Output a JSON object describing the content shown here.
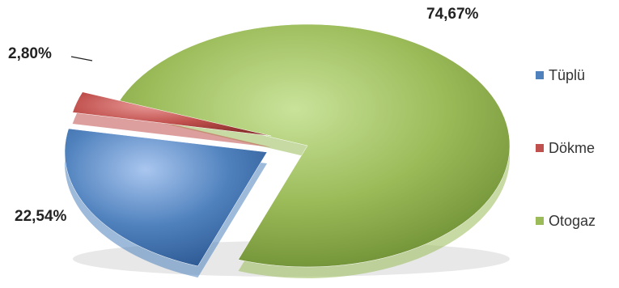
{
  "chart_data": {
    "type": "pie",
    "categories": [
      "Tüplü",
      "Dökme",
      "Otogaz"
    ],
    "values": [
      22.54,
      2.8,
      74.67
    ],
    "labels": [
      "22,54%",
      "2,80%",
      "74,67%"
    ],
    "colors": [
      "#4f81bd",
      "#c0504d",
      "#9bbb59"
    ],
    "legend_position": "right",
    "title": ""
  },
  "legend": {
    "items": [
      {
        "label": "Tüplü",
        "color": "#4f81bd"
      },
      {
        "label": "Dökme",
        "color": "#c0504d"
      },
      {
        "label": "Otogaz",
        "color": "#9bbb59"
      }
    ]
  }
}
